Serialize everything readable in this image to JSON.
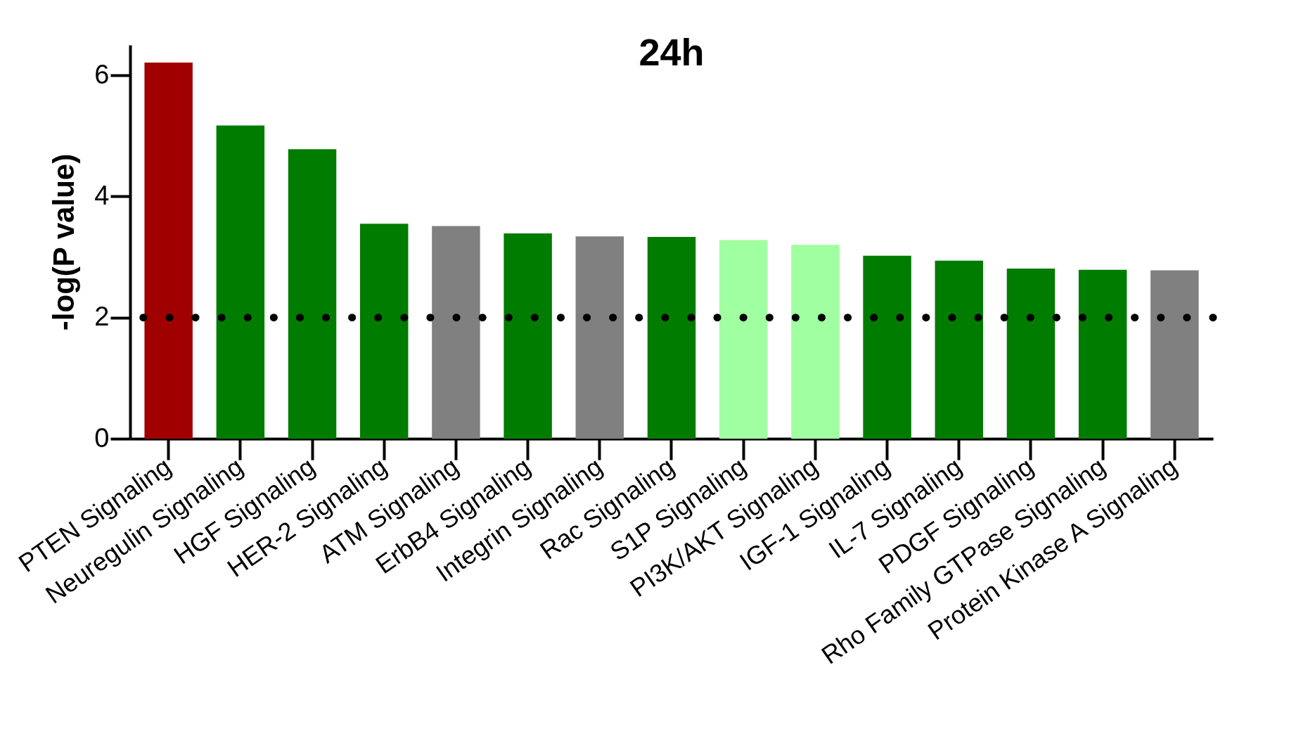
{
  "chart_data": {
    "type": "bar",
    "title": "24h",
    "ylabel": "-log(P value)",
    "categories": [
      "PTEN Signaling",
      "Neuregulin Signaling",
      "HGF Signaling",
      "HER-2 Signaling",
      "ATM Signaling",
      "ErbB4 Signaling",
      "Integrin Signaling",
      "Rac Signaling",
      "S1P Signaling",
      "PI3K/AKT Signaling",
      "IGF-1 Signaling",
      "IL-7 Signaling",
      "PDGF Signaling",
      "Rho Family GTPase Signaling",
      "Protein Kinase A Signaling"
    ],
    "values": [
      6.21,
      5.17,
      4.78,
      3.55,
      3.51,
      3.39,
      3.34,
      3.33,
      3.28,
      3.2,
      3.02,
      2.94,
      2.81,
      2.79,
      2.78
    ],
    "colors": [
      "#a00000",
      "#007c00",
      "#007c00",
      "#007c00",
      "#808080",
      "#007c00",
      "#808080",
      "#007c00",
      "#a0ffa0",
      "#a0ffa0",
      "#007c00",
      "#007c00",
      "#007c00",
      "#007c00",
      "#808080"
    ],
    "ylim": [
      0,
      6.5
    ],
    "yticks": [
      0,
      2,
      4,
      6
    ],
    "ref_lines": [
      {
        "axis": "y",
        "value": 2,
        "line_style": "dotted",
        "color": "#000000"
      }
    ]
  }
}
